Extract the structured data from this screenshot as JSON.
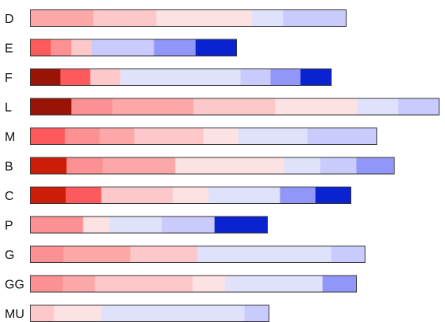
{
  "chart_data": {
    "type": "bar",
    "orientation": "horizontal",
    "stacked": true,
    "title": "",
    "xlabel": "",
    "ylabel": "",
    "axes_visible": false,
    "grid": false,
    "legend": "none",
    "rows": [
      {
        "label": "D",
        "segments": [
          {
            "value": 80,
            "color": "#fca7a8"
          },
          {
            "value": 80,
            "color": "#fdc8ca"
          },
          {
            "value": 121,
            "color": "#fde2e4"
          },
          {
            "value": 40,
            "color": "#e0e2fb"
          },
          {
            "value": 80,
            "color": "#c8cbfb"
          }
        ]
      },
      {
        "label": "E",
        "segments": [
          {
            "value": 26,
            "color": "#fc5a5c"
          },
          {
            "value": 26,
            "color": "#fc9193"
          },
          {
            "value": 26,
            "color": "#fdc8ca"
          },
          {
            "value": 79,
            "color": "#c8cbfb"
          },
          {
            "value": 53,
            "color": "#9196f9"
          },
          {
            "value": 52,
            "color": "#0a23d0"
          }
        ]
      },
      {
        "label": "F",
        "segments": [
          {
            "value": 38,
            "color": "#9a1307"
          },
          {
            "value": 38,
            "color": "#fc5a5c"
          },
          {
            "value": 38,
            "color": "#fdc8ca"
          },
          {
            "value": 153,
            "color": "#e0e2fb"
          },
          {
            "value": 38,
            "color": "#c8cbfb"
          },
          {
            "value": 38,
            "color": "#9196f9"
          },
          {
            "value": 39,
            "color": "#0a23d0"
          }
        ]
      },
      {
        "label": "L",
        "segments": [
          {
            "value": 52,
            "color": "#9a1307"
          },
          {
            "value": 52,
            "color": "#fc9193"
          },
          {
            "value": 103,
            "color": "#fca7a8"
          },
          {
            "value": 104,
            "color": "#fdc8ca"
          },
          {
            "value": 104,
            "color": "#fde2e4"
          },
          {
            "value": 52,
            "color": "#e0e2fb"
          },
          {
            "value": 52,
            "color": "#c8cbfb"
          }
        ]
      },
      {
        "label": "M",
        "segments": [
          {
            "value": 44,
            "color": "#fc5a5c"
          },
          {
            "value": 44,
            "color": "#fc9193"
          },
          {
            "value": 44,
            "color": "#fca7a8"
          },
          {
            "value": 88,
            "color": "#fdc8ca"
          },
          {
            "value": 44,
            "color": "#fde2e4"
          },
          {
            "value": 88,
            "color": "#e0e2fb"
          },
          {
            "value": 88,
            "color": "#c8cbfb"
          }
        ]
      },
      {
        "label": "B",
        "segments": [
          {
            "value": 46,
            "color": "#cc1d09"
          },
          {
            "value": 46,
            "color": "#fc9193"
          },
          {
            "value": 92,
            "color": "#fca7a8"
          },
          {
            "value": 138,
            "color": "#fde2e4"
          },
          {
            "value": 46,
            "color": "#e0e2fb"
          },
          {
            "value": 46,
            "color": "#c8cbfb"
          },
          {
            "value": 48,
            "color": "#9196f9"
          }
        ]
      },
      {
        "label": "C",
        "segments": [
          {
            "value": 45,
            "color": "#cc1d09"
          },
          {
            "value": 45,
            "color": "#fc5a5c"
          },
          {
            "value": 91,
            "color": "#fdc8ca"
          },
          {
            "value": 45,
            "color": "#fde2e4"
          },
          {
            "value": 91,
            "color": "#e0e2fb"
          },
          {
            "value": 45,
            "color": "#9196f9"
          },
          {
            "value": 45,
            "color": "#0a23d0"
          }
        ]
      },
      {
        "label": "P",
        "segments": [
          {
            "value": 67,
            "color": "#fc9193"
          },
          {
            "value": 33,
            "color": "#fde2e4"
          },
          {
            "value": 67,
            "color": "#e0e2fb"
          },
          {
            "value": 67,
            "color": "#c8cbfb"
          },
          {
            "value": 67,
            "color": "#0a23d0"
          }
        ]
      },
      {
        "label": "G",
        "segments": [
          {
            "value": 42,
            "color": "#fc9193"
          },
          {
            "value": 85,
            "color": "#fca7a8"
          },
          {
            "value": 85,
            "color": "#fdc8ca"
          },
          {
            "value": 170,
            "color": "#e0e2fb"
          },
          {
            "value": 43,
            "color": "#c8cbfb"
          }
        ]
      },
      {
        "label": "GG",
        "segments": [
          {
            "value": 41,
            "color": "#fc9193"
          },
          {
            "value": 41,
            "color": "#fca7a8"
          },
          {
            "value": 124,
            "color": "#fdc8ca"
          },
          {
            "value": 41,
            "color": "#fde2e4"
          },
          {
            "value": 124,
            "color": "#e0e2fb"
          },
          {
            "value": 43,
            "color": "#9196f9"
          }
        ]
      },
      {
        "label": "MU",
        "segments": [
          {
            "value": 30,
            "color": "#fdc8ca"
          },
          {
            "value": 60,
            "color": "#fde2e4"
          },
          {
            "value": 182,
            "color": "#e0e2fb"
          },
          {
            "value": 31,
            "color": "#c8cbfb"
          }
        ]
      }
    ]
  }
}
